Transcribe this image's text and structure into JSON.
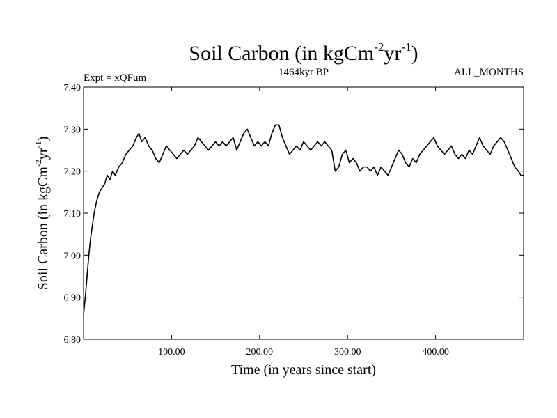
{
  "chart_data": {
    "type": "line",
    "title": {
      "main": "Soil Carbon (in kgCm",
      "sup1": "-2",
      "mid": "yr",
      "sup2": "-1",
      "end": ")"
    },
    "subtitle_left": "Expt = xQFum",
    "subtitle_center": "1464kyr BP",
    "subtitle_right": "ALL_MONTHS",
    "xlabel": "Time (in years since start)",
    "ylabel": {
      "main": "Soil Carbon (in kgCm",
      "sup1": "-2",
      "mid": "yr",
      "sup2": "-1",
      "end": ")"
    },
    "xlim": [
      0,
      500
    ],
    "ylim": [
      6.8,
      7.4
    ],
    "x_ticks": [
      100,
      200,
      300,
      400
    ],
    "x_tick_labels": [
      "100.00",
      "200.00",
      "300.00",
      "400.00"
    ],
    "y_ticks": [
      6.8,
      6.9,
      7.0,
      7.1,
      7.2,
      7.3,
      7.4
    ],
    "y_tick_labels": [
      "6.80",
      "6.90",
      "7.00",
      "7.10",
      "7.20",
      "7.30",
      "7.40"
    ],
    "grid": false,
    "series": [
      {
        "name": "Soil Carbon",
        "color": "#000000",
        "x": [
          0,
          2,
          4,
          6,
          8,
          10,
          12,
          15,
          18,
          21,
          24,
          27,
          30,
          33,
          36,
          40,
          44,
          48,
          52,
          56,
          60,
          63,
          66,
          70,
          74,
          78,
          82,
          86,
          90,
          94,
          98,
          102,
          106,
          110,
          114,
          118,
          122,
          126,
          130,
          134,
          138,
          142,
          146,
          150,
          154,
          158,
          162,
          166,
          170,
          174,
          178,
          182,
          186,
          190,
          194,
          198,
          202,
          206,
          210,
          214,
          218,
          222,
          226,
          230,
          234,
          238,
          242,
          246,
          250,
          254,
          258,
          262,
          266,
          270,
          274,
          278,
          282,
          286,
          290,
          294,
          298,
          302,
          306,
          310,
          314,
          318,
          322,
          326,
          330,
          334,
          338,
          342,
          346,
          350,
          354,
          358,
          362,
          366,
          370,
          374,
          378,
          382,
          386,
          390,
          394,
          398,
          402,
          406,
          410,
          414,
          418,
          422,
          426,
          430,
          434,
          438,
          442,
          446,
          450,
          454,
          458,
          462,
          466,
          470,
          474,
          478,
          482,
          486,
          490,
          494,
          497,
          500
        ],
        "values": [
          6.86,
          6.9,
          6.95,
          7.0,
          7.04,
          7.07,
          7.1,
          7.13,
          7.15,
          7.16,
          7.17,
          7.19,
          7.18,
          7.2,
          7.19,
          7.21,
          7.22,
          7.24,
          7.25,
          7.26,
          7.28,
          7.29,
          7.27,
          7.28,
          7.26,
          7.25,
          7.23,
          7.22,
          7.24,
          7.26,
          7.25,
          7.24,
          7.23,
          7.24,
          7.25,
          7.24,
          7.25,
          7.26,
          7.28,
          7.27,
          7.26,
          7.25,
          7.26,
          7.27,
          7.26,
          7.27,
          7.26,
          7.27,
          7.28,
          7.25,
          7.27,
          7.29,
          7.3,
          7.28,
          7.26,
          7.27,
          7.26,
          7.27,
          7.26,
          7.29,
          7.31,
          7.31,
          7.28,
          7.26,
          7.24,
          7.25,
          7.26,
          7.25,
          7.27,
          7.26,
          7.25,
          7.26,
          7.27,
          7.26,
          7.27,
          7.26,
          7.25,
          7.2,
          7.21,
          7.24,
          7.25,
          7.22,
          7.23,
          7.22,
          7.2,
          7.21,
          7.21,
          7.2,
          7.21,
          7.19,
          7.21,
          7.2,
          7.19,
          7.21,
          7.23,
          7.25,
          7.24,
          7.22,
          7.21,
          7.23,
          7.22,
          7.24,
          7.25,
          7.26,
          7.27,
          7.28,
          7.26,
          7.25,
          7.24,
          7.25,
          7.26,
          7.24,
          7.23,
          7.24,
          7.23,
          7.25,
          7.24,
          7.26,
          7.28,
          7.26,
          7.25,
          7.24,
          7.26,
          7.27,
          7.28,
          7.27,
          7.25,
          7.23,
          7.21,
          7.2,
          7.19,
          7.19
        ]
      }
    ]
  }
}
